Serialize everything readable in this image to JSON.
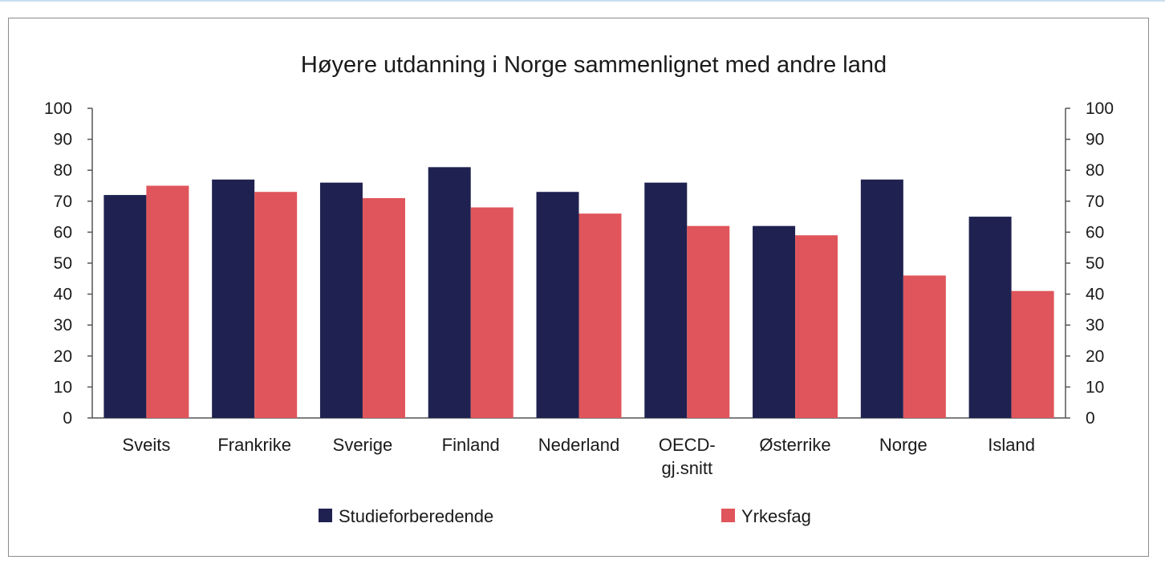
{
  "chart_data": {
    "type": "bar",
    "title": "Høyere utdanning i Norge sammenlignet med andre land",
    "categories": [
      [
        "Sveits"
      ],
      [
        "Frankrike"
      ],
      [
        "Sverige"
      ],
      [
        "Finland"
      ],
      [
        "Nederland"
      ],
      [
        "OECD-",
        "gj.snitt"
      ],
      [
        "Østerrike"
      ],
      [
        "Norge"
      ],
      [
        "Island"
      ]
    ],
    "series": [
      {
        "name": "Studieforberedende",
        "color": "#1f2250",
        "values": [
          72,
          77,
          76,
          81,
          73,
          76,
          62,
          77,
          65
        ]
      },
      {
        "name": "Yrkesfag",
        "color": "#e0555b",
        "values": [
          75,
          73,
          71,
          68,
          66,
          62,
          59,
          46,
          41
        ]
      }
    ],
    "ylim": [
      0,
      100
    ],
    "yticks": [
      0,
      10,
      20,
      30,
      40,
      50,
      60,
      70,
      80,
      90,
      100
    ],
    "secondary_axis": true,
    "grid": false,
    "legend_position": "bottom"
  }
}
